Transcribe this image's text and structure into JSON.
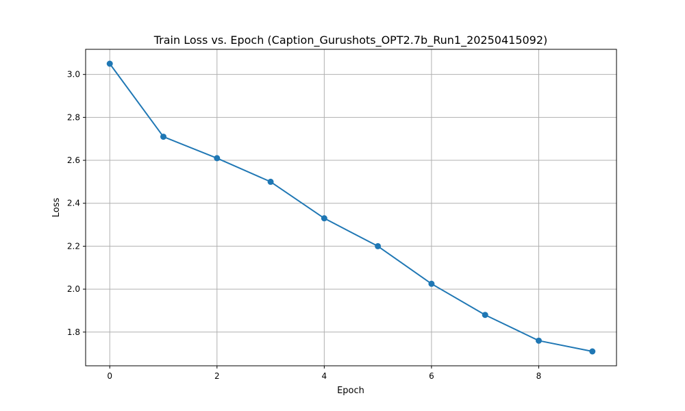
{
  "chart_data": {
    "type": "line",
    "title": "Train Loss vs. Epoch (Caption_Gurushots_OPT2.7b_Run1_20250415092)",
    "xlabel": "Epoch",
    "ylabel": "Loss",
    "xlim": [
      -0.45,
      9.45
    ],
    "ylim": [
      1.643,
      3.117
    ],
    "x_ticks": [
      0,
      2,
      4,
      6,
      8
    ],
    "y_ticks": [
      1.8,
      2.0,
      2.2,
      2.4,
      2.6,
      2.8,
      3.0
    ],
    "x_tick_labels": [
      "0",
      "2",
      "4",
      "6",
      "8"
    ],
    "y_tick_labels": [
      "1.8",
      "2.0",
      "2.2",
      "2.4",
      "2.6",
      "2.8",
      "3.0"
    ],
    "grid": true,
    "legend": false,
    "series": [
      {
        "color": "#1f77b4",
        "marker": "circle",
        "x": [
          0,
          1,
          2,
          3,
          4,
          5,
          6,
          7,
          8,
          9
        ],
        "y": [
          3.05,
          2.71,
          2.61,
          2.5,
          2.33,
          2.2,
          2.025,
          1.88,
          1.76,
          1.71
        ]
      }
    ]
  }
}
